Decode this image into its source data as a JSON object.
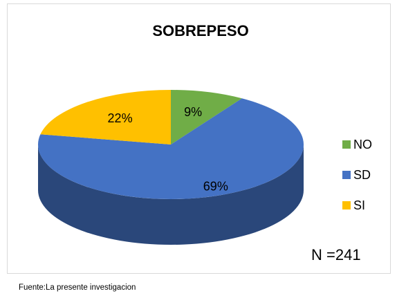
{
  "chart_data": {
    "type": "pie",
    "title": "SOBREPESO",
    "categories": [
      "NO",
      "SD",
      "SI"
    ],
    "values": [
      9,
      69,
      22
    ],
    "value_labels": [
      "9%",
      "69%",
      "22%"
    ],
    "colors": [
      "#70ad47",
      "#4472c4",
      "#ffc000"
    ],
    "legend": "right",
    "annotations": [
      "N =241",
      "Fuente:La presente investigacion"
    ]
  }
}
